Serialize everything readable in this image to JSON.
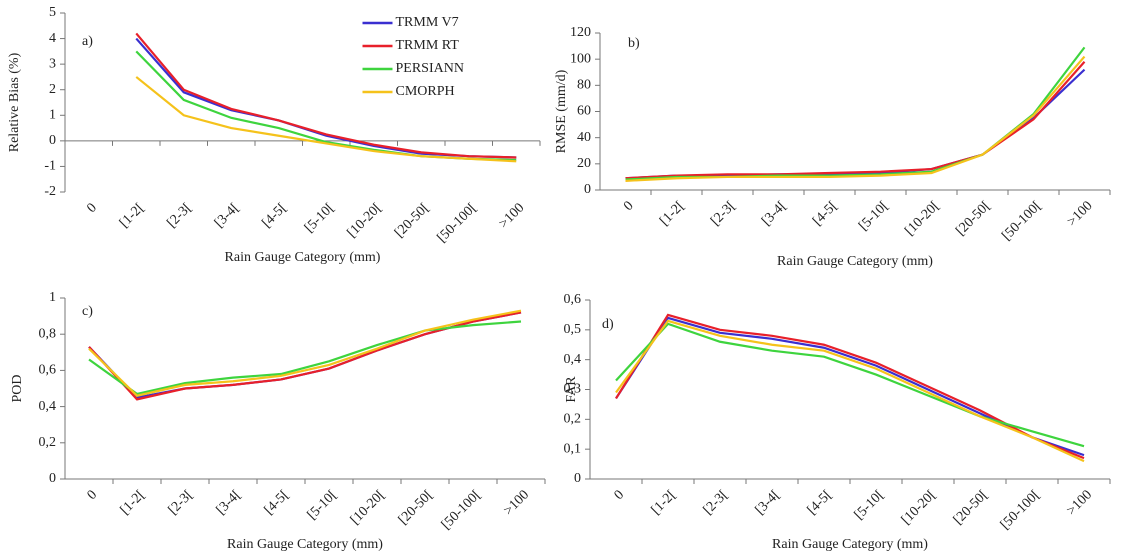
{
  "chart_data": [
    {
      "type": "line",
      "panel_label": "a)",
      "x_label": "Rain Gauge Category (mm)",
      "y_label": "Relative Bias (%)",
      "categories": [
        "0",
        "[1-2[",
        "[2-3[",
        "[3-4[",
        "[4-5[",
        "[5-10[",
        "[10-20[",
        "[20-50[",
        "[50-100[",
        ">100"
      ],
      "ylim": [
        -2,
        5
      ],
      "yticks": [
        -2,
        -1,
        0,
        1,
        2,
        3,
        4,
        5
      ],
      "legend": "top",
      "series": [
        {
          "name": "TRMM V7",
          "color": "#3a2fd0",
          "values": [
            null,
            4.0,
            1.9,
            1.2,
            0.8,
            0.2,
            -0.2,
            -0.5,
            -0.6,
            -0.65
          ]
        },
        {
          "name": "TRMM RT",
          "color": "#e8202a",
          "values": [
            null,
            4.2,
            2.0,
            1.25,
            0.8,
            0.25,
            -0.15,
            -0.45,
            -0.6,
            -0.65
          ]
        },
        {
          "name": "PERSIANN",
          "color": "#3ed43e",
          "values": [
            null,
            3.5,
            1.6,
            0.9,
            0.5,
            -0.05,
            -0.35,
            -0.6,
            -0.7,
            -0.75
          ]
        },
        {
          "name": "CMORPH",
          "color": "#f5c21b",
          "values": [
            null,
            2.5,
            1.0,
            0.5,
            0.2,
            -0.1,
            -0.4,
            -0.6,
            -0.7,
            -0.8
          ]
        }
      ]
    },
    {
      "type": "line",
      "panel_label": "b)",
      "x_label": "Rain Gauge Category (mm)",
      "y_label": "RMSE (mm/d)",
      "categories": [
        "0",
        "[1-2[",
        "[2-3[",
        "[3-4[",
        "[4-5[",
        "[5-10[",
        "[10-20[",
        "[20-50[",
        "[50-100[",
        ">100"
      ],
      "ylim": [
        0,
        120
      ],
      "yticks": [
        0,
        20,
        40,
        60,
        80,
        100,
        120
      ],
      "series": [
        {
          "color": "#3a2fd0",
          "values": [
            9,
            11,
            11,
            12,
            12,
            13,
            16,
            27,
            55,
            92
          ]
        },
        {
          "color": "#e8202a",
          "values": [
            9,
            11,
            12,
            12,
            13,
            14,
            16,
            27,
            54,
            98
          ]
        },
        {
          "color": "#3ed43e",
          "values": [
            8,
            10,
            10,
            11,
            11,
            12,
            14,
            27,
            58,
            109
          ]
        },
        {
          "color": "#f5c21b",
          "values": [
            7,
            9,
            10,
            10,
            10,
            11,
            13,
            27,
            57,
            102
          ]
        }
      ]
    },
    {
      "type": "line",
      "panel_label": "c)",
      "x_label": "Rain Gauge Category (mm)",
      "y_label": "POD",
      "categories": [
        "0",
        "[1-2[",
        "[2-3[",
        "[3-4[",
        "[4-5[",
        "[5-10[",
        "[10-20[",
        "[20-50[",
        "[50-100[",
        ">100"
      ],
      "ylim": [
        0,
        1
      ],
      "yticks": [
        0,
        {
          "value": 0.2,
          "label": "0,2"
        },
        {
          "value": 0.4,
          "label": "0,4"
        },
        {
          "value": 0.6,
          "label": "0,6"
        },
        {
          "value": 0.8,
          "label": "0,8"
        },
        1
      ],
      "series": [
        {
          "color": "#3a2fd0",
          "values": [
            0.73,
            0.45,
            0.5,
            0.52,
            0.55,
            0.61,
            0.71,
            0.8,
            0.87,
            0.92
          ]
        },
        {
          "color": "#e8202a",
          "values": [
            0.73,
            0.44,
            0.5,
            0.52,
            0.55,
            0.61,
            0.71,
            0.8,
            0.87,
            0.92
          ]
        },
        {
          "color": "#3ed43e",
          "values": [
            0.66,
            0.47,
            0.53,
            0.56,
            0.58,
            0.65,
            0.74,
            0.82,
            0.85,
            0.87
          ]
        },
        {
          "color": "#f5c21b",
          "values": [
            0.72,
            0.46,
            0.52,
            0.54,
            0.57,
            0.63,
            0.72,
            0.82,
            0.88,
            0.93
          ]
        }
      ]
    },
    {
      "type": "line",
      "panel_label": "d)",
      "x_label": "Rain Gauge Category (mm)",
      "y_label": "FAR",
      "categories": [
        "0",
        "[1-2[",
        "[2-3[",
        "[3-4[",
        "[4-5[",
        "[5-10[",
        "[10-20[",
        "[20-50[",
        "[50-100[",
        ">100"
      ],
      "ylim": [
        0,
        0.6
      ],
      "yticks": [
        0,
        {
          "value": 0.1,
          "label": "0,1"
        },
        {
          "value": 0.2,
          "label": "0,2"
        },
        {
          "value": 0.3,
          "label": "0,3"
        },
        {
          "value": 0.4,
          "label": "0,4"
        },
        {
          "value": 0.5,
          "label": "0,5"
        },
        {
          "value": 0.6,
          "label": "0,6"
        }
      ],
      "series": [
        {
          "color": "#3a2fd0",
          "values": [
            0.27,
            0.54,
            0.49,
            0.47,
            0.44,
            0.38,
            0.3,
            0.22,
            0.14,
            0.08
          ]
        },
        {
          "color": "#e8202a",
          "values": [
            0.27,
            0.55,
            0.5,
            0.48,
            0.45,
            0.39,
            0.31,
            0.23,
            0.14,
            0.07
          ]
        },
        {
          "color": "#3ed43e",
          "values": [
            0.33,
            0.52,
            0.46,
            0.43,
            0.41,
            0.35,
            0.28,
            0.21,
            0.16,
            0.11
          ]
        },
        {
          "color": "#f5c21b",
          "values": [
            0.29,
            0.53,
            0.48,
            0.45,
            0.43,
            0.37,
            0.29,
            0.21,
            0.14,
            0.06
          ]
        }
      ]
    }
  ]
}
